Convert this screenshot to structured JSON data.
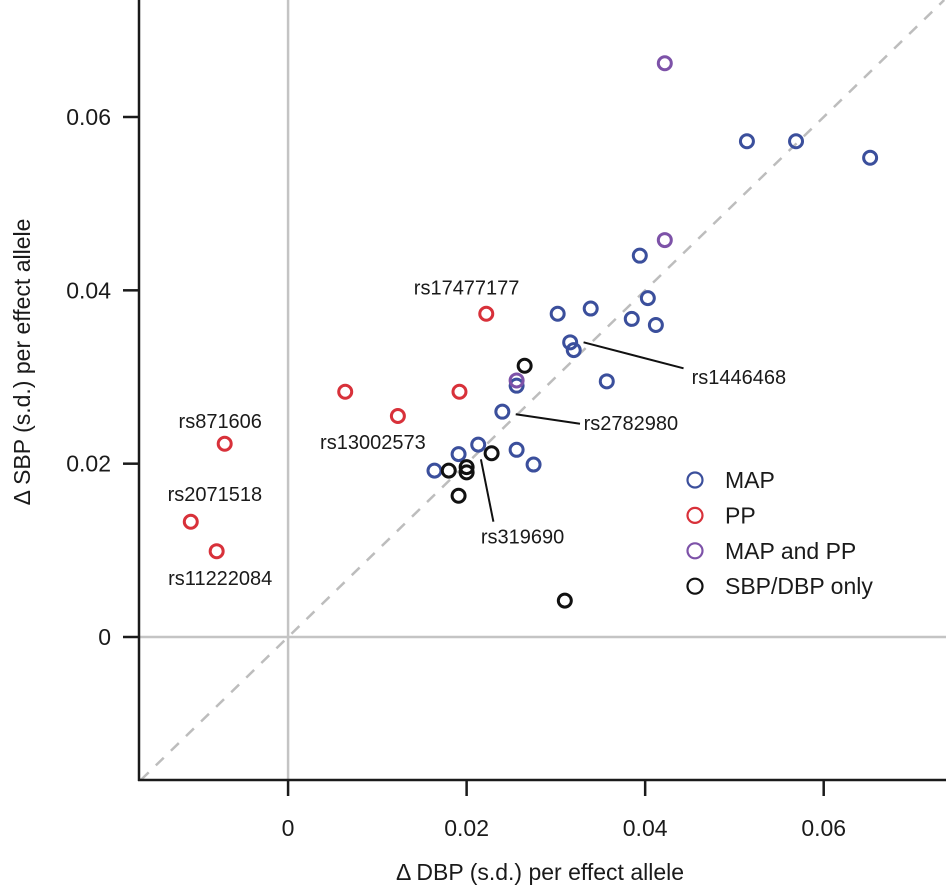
{
  "chart_data": {
    "type": "scatter",
    "title": "",
    "xlabel": "Δ DBP (s.d.) per effect allele",
    "ylabel": "Δ SBP (s.d.) per effect allele",
    "xlim": [
      -0.0167,
      0.0737
    ],
    "ylim": [
      -0.0165,
      0.0735
    ],
    "xticks": [
      0,
      0.02,
      0.04,
      0.06
    ],
    "xtick_labels": [
      "0",
      "0.02",
      "0.04",
      "0.06"
    ],
    "yticks": [
      0,
      0.02,
      0.04,
      0.06
    ],
    "ytick_labels": [
      "0",
      "0.02",
      "0.04",
      "0.06"
    ],
    "grid": false,
    "reference_lines": [
      {
        "name": "x-zero-line",
        "type": "vertical",
        "x": 0,
        "color": "#c4c4c4"
      },
      {
        "name": "y-zero-line",
        "type": "horizontal",
        "y": 0,
        "color": "#c4c4c4"
      },
      {
        "name": "identity-line",
        "type": "diagonal-dashed",
        "slope": 1,
        "intercept": 0,
        "color": "#bdbdbd"
      }
    ],
    "legend": {
      "placement": "right-middle",
      "entries": [
        {
          "label": "MAP",
          "color": "#3b4f9c"
        },
        {
          "label": "PP",
          "color": "#d8313a"
        },
        {
          "label": "MAP and PP",
          "color": "#7d52a8"
        },
        {
          "label": "SBP/DBP only",
          "color": "#111111"
        }
      ]
    },
    "series": [
      {
        "name": "MAP",
        "color": "#3b4f9c",
        "points": [
          {
            "x": 0.0514,
            "y": 0.0572
          },
          {
            "x": 0.0569,
            "y": 0.0572
          },
          {
            "x": 0.0652,
            "y": 0.0553
          },
          {
            "x": 0.0394,
            "y": 0.044
          },
          {
            "x": 0.0403,
            "y": 0.0391
          },
          {
            "x": 0.0339,
            "y": 0.0379
          },
          {
            "x": 0.0302,
            "y": 0.0373
          },
          {
            "x": 0.0385,
            "y": 0.0367
          },
          {
            "x": 0.0412,
            "y": 0.036
          },
          {
            "x": 0.0316,
            "y": 0.034
          },
          {
            "x": 0.032,
            "y": 0.0331
          },
          {
            "x": 0.0357,
            "y": 0.0295
          },
          {
            "x": 0.0256,
            "y": 0.029
          },
          {
            "x": 0.024,
            "y": 0.026
          },
          {
            "x": 0.0213,
            "y": 0.0222
          },
          {
            "x": 0.0256,
            "y": 0.0216
          },
          {
            "x": 0.0191,
            "y": 0.0211
          },
          {
            "x": 0.0275,
            "y": 0.0199
          },
          {
            "x": 0.0164,
            "y": 0.0192
          }
        ]
      },
      {
        "name": "PP",
        "color": "#d8313a",
        "points": [
          {
            "x": 0.0222,
            "y": 0.0373
          },
          {
            "x": 0.0064,
            "y": 0.0283
          },
          {
            "x": 0.0192,
            "y": 0.0283
          },
          {
            "x": 0.0123,
            "y": 0.0255
          },
          {
            "x": -0.0071,
            "y": 0.0223
          },
          {
            "x": -0.0109,
            "y": 0.0133
          },
          {
            "x": -0.008,
            "y": 0.0099
          }
        ]
      },
      {
        "name": "MAP and PP",
        "color": "#7d52a8",
        "points": [
          {
            "x": 0.0422,
            "y": 0.0662
          },
          {
            "x": 0.0422,
            "y": 0.0458
          },
          {
            "x": 0.0256,
            "y": 0.0296
          }
        ]
      },
      {
        "name": "SBP/DBP only",
        "color": "#111111",
        "points": [
          {
            "x": 0.0265,
            "y": 0.0313
          },
          {
            "x": 0.0228,
            "y": 0.0212
          },
          {
            "x": 0.02,
            "y": 0.0196
          },
          {
            "x": 0.02,
            "y": 0.019
          },
          {
            "x": 0.018,
            "y": 0.0192
          },
          {
            "x": 0.0191,
            "y": 0.0163
          },
          {
            "x": 0.031,
            "y": 0.0042
          }
        ]
      }
    ],
    "annotations": [
      {
        "text": "rs871606",
        "x": -0.0076,
        "y": 0.0249,
        "anchor": "middle"
      },
      {
        "text": "rs2071518",
        "x": -0.0082,
        "y": 0.0165,
        "anchor": "middle"
      },
      {
        "text": "rs11222084",
        "x": -0.0076,
        "y": 0.0068,
        "anchor": "middle"
      },
      {
        "text": "rs17477177",
        "x": 0.02,
        "y": 0.0403,
        "anchor": "middle"
      },
      {
        "text": "rs13002573",
        "x": 0.0095,
        "y": 0.0225,
        "anchor": "middle"
      },
      {
        "text": "rs2782980",
        "x": 0.0331,
        "y": 0.0247,
        "anchor": "start",
        "leader": [
          [
            0.0255,
            0.0257
          ],
          [
            0.0327,
            0.0246
          ]
        ]
      },
      {
        "text": "rs1446468",
        "x": 0.0452,
        "y": 0.03,
        "anchor": "start",
        "leader": [
          [
            0.0331,
            0.034
          ],
          [
            0.0443,
            0.031
          ]
        ]
      },
      {
        "text": "rs319690",
        "x": 0.0216,
        "y": 0.0116,
        "anchor": "start",
        "leader": [
          [
            0.0216,
            0.0205
          ],
          [
            0.023,
            0.0133
          ]
        ]
      }
    ]
  }
}
